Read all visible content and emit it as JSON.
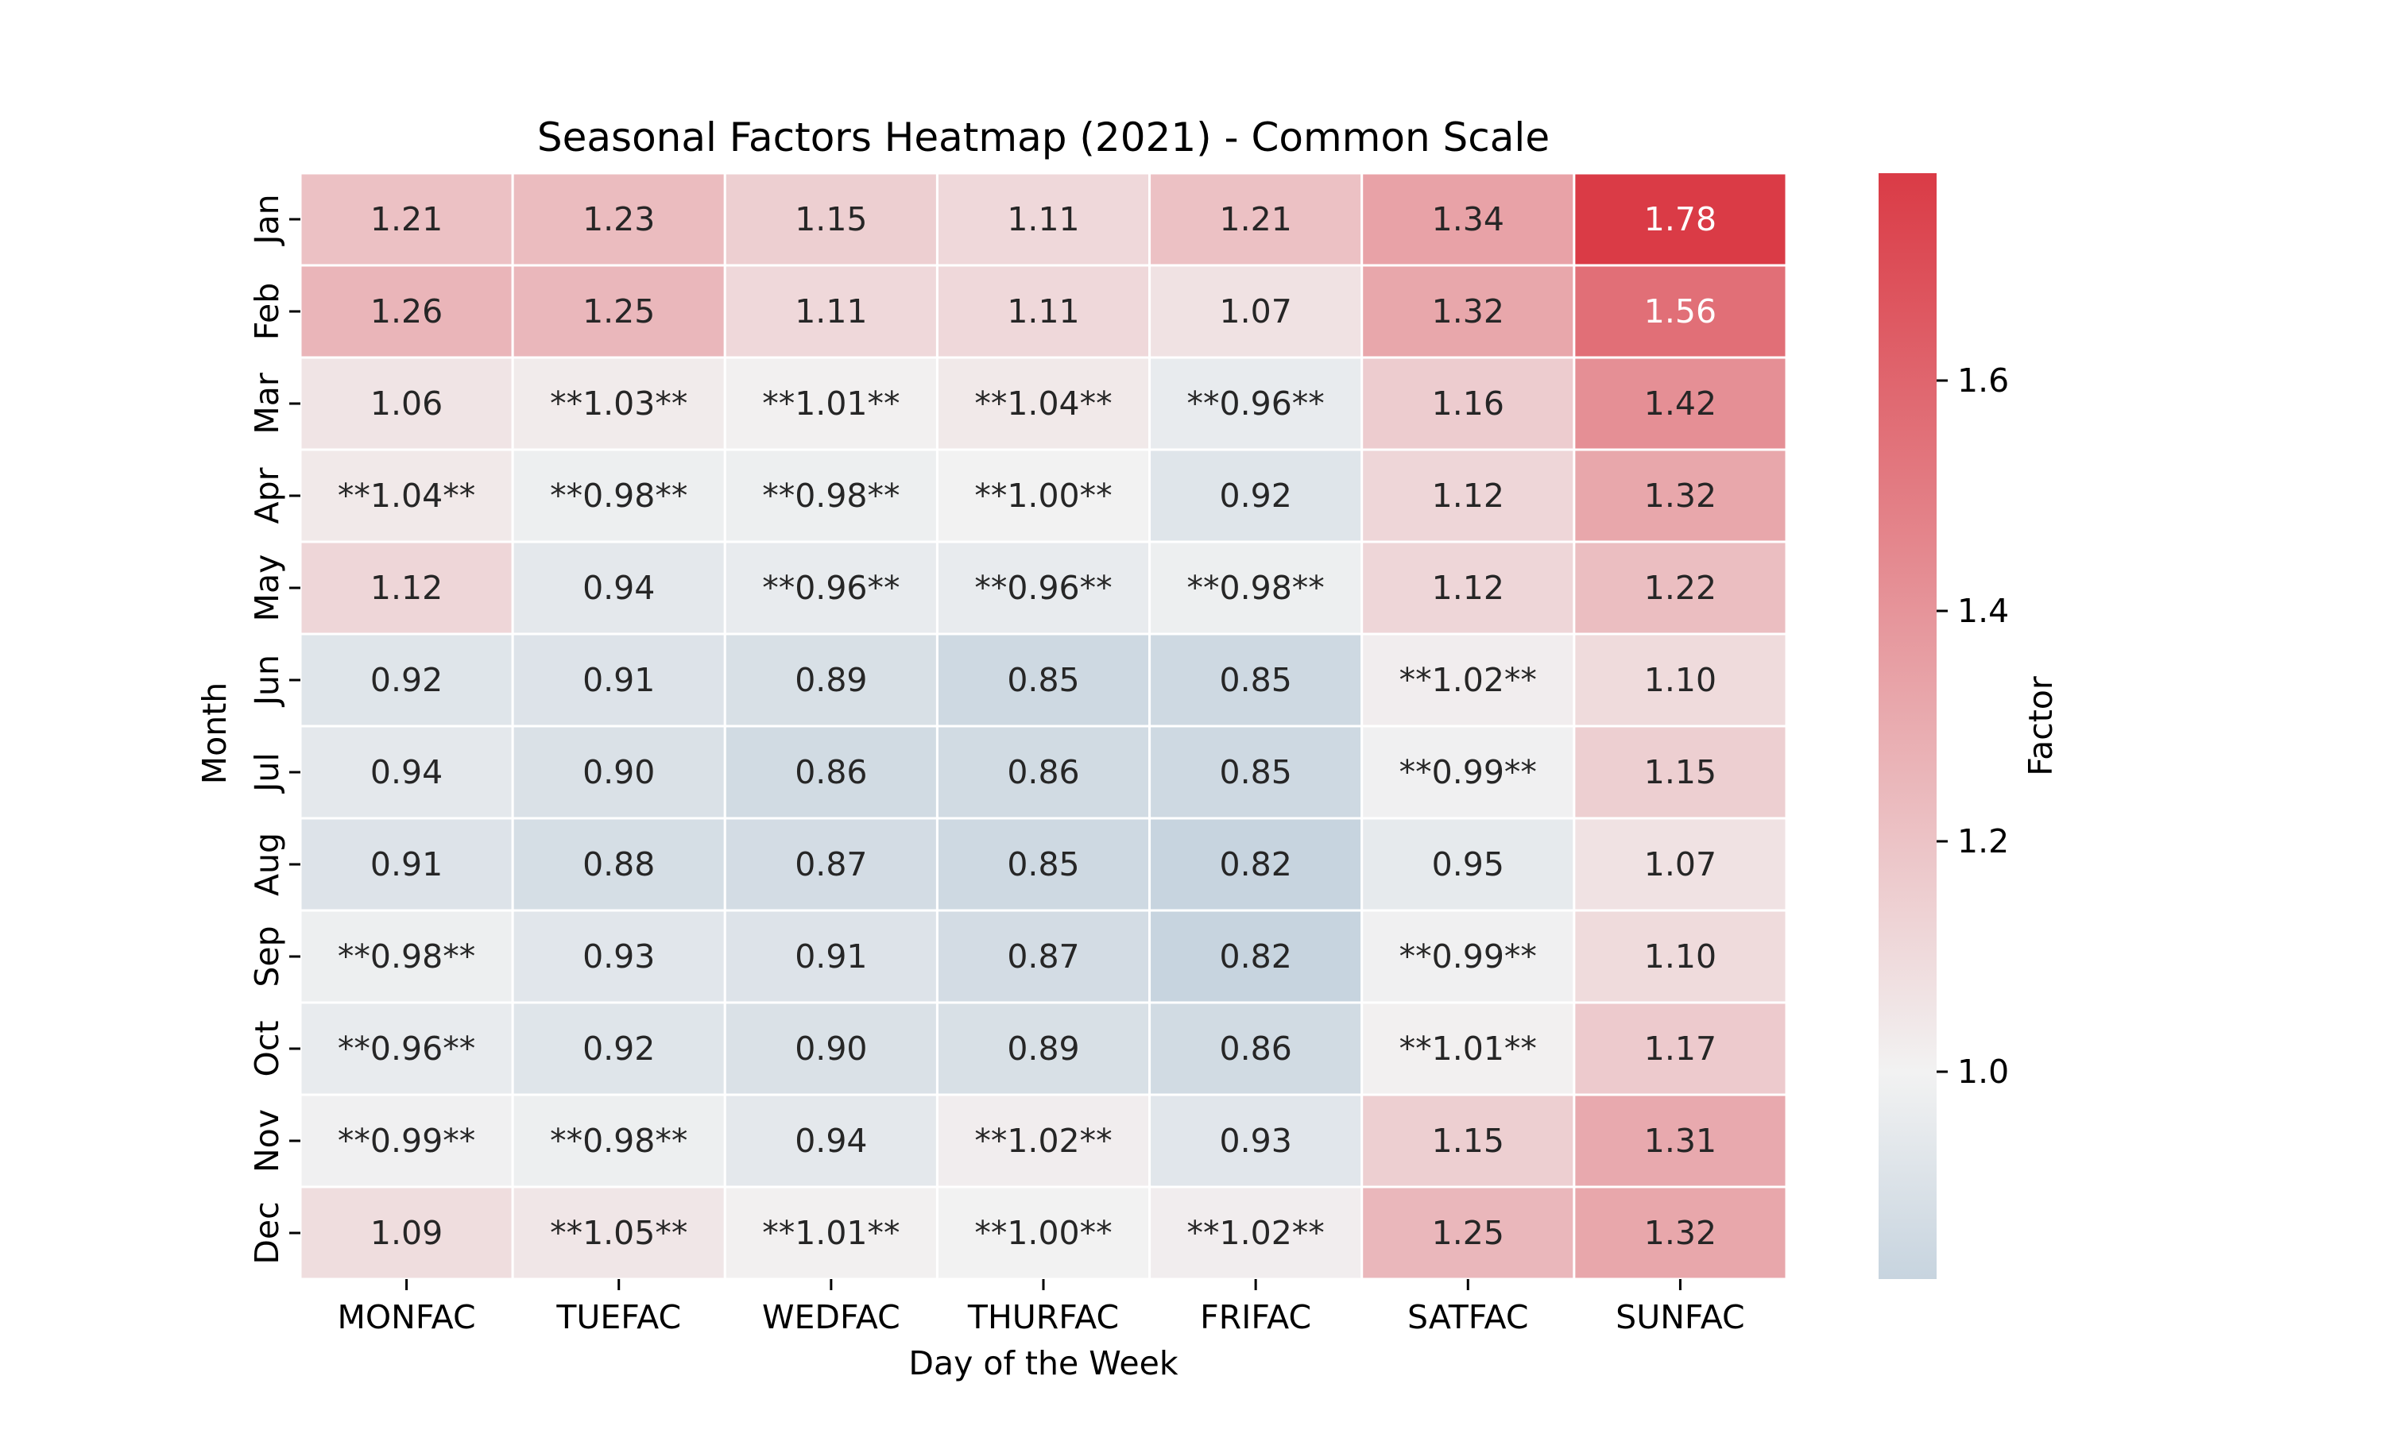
{
  "chart_data": {
    "type": "heatmap",
    "title": "Seasonal Factors Heatmap (2021) - Common Scale",
    "xlabel": "Day of the Week",
    "ylabel": "Month",
    "x_categories": [
      "MONFAC",
      "TUEFAC",
      "WEDFAC",
      "THURFAC",
      "FRIFAC",
      "SATFAC",
      "SUNFAC"
    ],
    "y_categories": [
      "Jan",
      "Feb",
      "Mar",
      "Apr",
      "May",
      "Jun",
      "Jul",
      "Aug",
      "Sep",
      "Oct",
      "Nov",
      "Dec"
    ],
    "values": [
      [
        1.21,
        1.23,
        1.15,
        1.11,
        1.21,
        1.34,
        1.78
      ],
      [
        1.26,
        1.25,
        1.11,
        1.11,
        1.07,
        1.32,
        1.56
      ],
      [
        1.06,
        1.03,
        1.01,
        1.04,
        0.96,
        1.16,
        1.42
      ],
      [
        1.04,
        0.98,
        0.98,
        1.0,
        0.92,
        1.12,
        1.32
      ],
      [
        1.12,
        0.94,
        0.96,
        0.96,
        0.98,
        1.12,
        1.22
      ],
      [
        0.92,
        0.91,
        0.89,
        0.85,
        0.85,
        1.02,
        1.1
      ],
      [
        0.94,
        0.9,
        0.86,
        0.86,
        0.85,
        0.99,
        1.15
      ],
      [
        0.91,
        0.88,
        0.87,
        0.85,
        0.82,
        0.95,
        1.07
      ],
      [
        0.98,
        0.93,
        0.91,
        0.87,
        0.82,
        0.99,
        1.1
      ],
      [
        0.96,
        0.92,
        0.9,
        0.89,
        0.86,
        1.01,
        1.17
      ],
      [
        0.99,
        0.98,
        0.94,
        1.02,
        0.93,
        1.15,
        1.31
      ],
      [
        1.09,
        1.05,
        1.01,
        1.0,
        1.02,
        1.25,
        1.32
      ]
    ],
    "annotations": [
      [
        "1.21",
        "1.23",
        "1.15",
        "1.11",
        "1.21",
        "1.34",
        "1.78"
      ],
      [
        "1.26",
        "1.25",
        "1.11",
        "1.11",
        "1.07",
        "1.32",
        "1.56"
      ],
      [
        "1.06",
        "**1.03**",
        "**1.01**",
        "**1.04**",
        "**0.96**",
        "1.16",
        "1.42"
      ],
      [
        "**1.04**",
        "**0.98**",
        "**0.98**",
        "**1.00**",
        "0.92",
        "1.12",
        "1.32"
      ],
      [
        "1.12",
        "0.94",
        "**0.96**",
        "**0.96**",
        "**0.98**",
        "1.12",
        "1.22"
      ],
      [
        "0.92",
        "0.91",
        "0.89",
        "0.85",
        "0.85",
        "**1.02**",
        "1.10"
      ],
      [
        "0.94",
        "0.90",
        "0.86",
        "0.86",
        "0.85",
        "**0.99**",
        "1.15"
      ],
      [
        "0.91",
        "0.88",
        "0.87",
        "0.85",
        "0.82",
        "0.95",
        "1.07"
      ],
      [
        "**0.98**",
        "0.93",
        "0.91",
        "0.87",
        "0.82",
        "**0.99**",
        "1.10"
      ],
      [
        "**0.96**",
        "0.92",
        "0.90",
        "0.89",
        "0.86",
        "**1.01**",
        "1.17"
      ],
      [
        "**0.99**",
        "**0.98**",
        "0.94",
        "**1.02**",
        "0.93",
        "1.15",
        "1.31"
      ],
      [
        "1.09",
        "**1.05**",
        "**1.01**",
        "**1.00**",
        "**1.02**",
        "1.25",
        "1.32"
      ]
    ],
    "colorbar": {
      "label": "Factor",
      "ticks": [
        1.0,
        1.2,
        1.4,
        1.6
      ],
      "tick_labels": [
        "1.0",
        "1.2",
        "1.4",
        "1.6"
      ],
      "range": [
        0.82,
        1.78
      ],
      "center": 1.0,
      "colors": {
        "low": "#c7d4df",
        "mid": "#f2f2f2",
        "high": "#da3b46"
      }
    },
    "text_colors": {
      "dark": "#262626",
      "light": "#ffffff"
    },
    "cell_border_color": "#ffffff"
  }
}
